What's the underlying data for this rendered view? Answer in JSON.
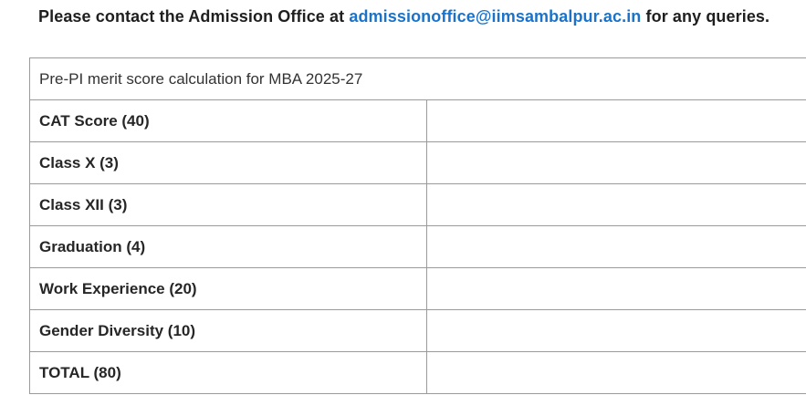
{
  "notice": {
    "prefix": "Please contact the Admission Office at",
    "email": "admissionoffice@iimsambalpur.ac.in",
    "suffix": "for any queries."
  },
  "table": {
    "caption": "Pre-PI merit score calculation for MBA 2025-27",
    "rows": [
      {
        "label": "CAT Score (40)",
        "value": ""
      },
      {
        "label": "Class X (3)",
        "value": ""
      },
      {
        "label": "Class XII (3)",
        "value": ""
      },
      {
        "label": "Graduation (4)",
        "value": ""
      },
      {
        "label": "Work Experience (20)",
        "value": ""
      },
      {
        "label": "Gender Diversity (10)",
        "value": ""
      },
      {
        "label": "TOTAL (80)",
        "value": ""
      }
    ]
  }
}
